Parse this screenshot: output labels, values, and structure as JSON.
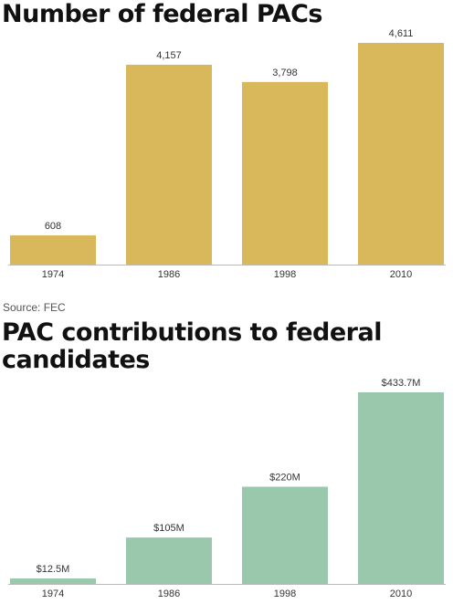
{
  "chart_data": [
    {
      "type": "bar",
      "title": "Number of federal PACs",
      "categories": [
        "1974",
        "1986",
        "1998",
        "2010"
      ],
      "values": [
        608,
        4157,
        3798,
        4611
      ],
      "value_labels": [
        "608",
        "4,157",
        "3,798",
        "4,611"
      ],
      "color": "#d8b85a",
      "source": "Source: FEC"
    },
    {
      "type": "bar",
      "title": "PAC contributions to federal candidates",
      "categories": [
        "1974",
        "1986",
        "1998",
        "2010"
      ],
      "values": [
        12.5,
        105,
        220,
        433.7
      ],
      "value_labels": [
        "$12.5M",
        "$105M",
        "$220M",
        "$433.7M"
      ],
      "color": "#9ac8ad"
    }
  ]
}
